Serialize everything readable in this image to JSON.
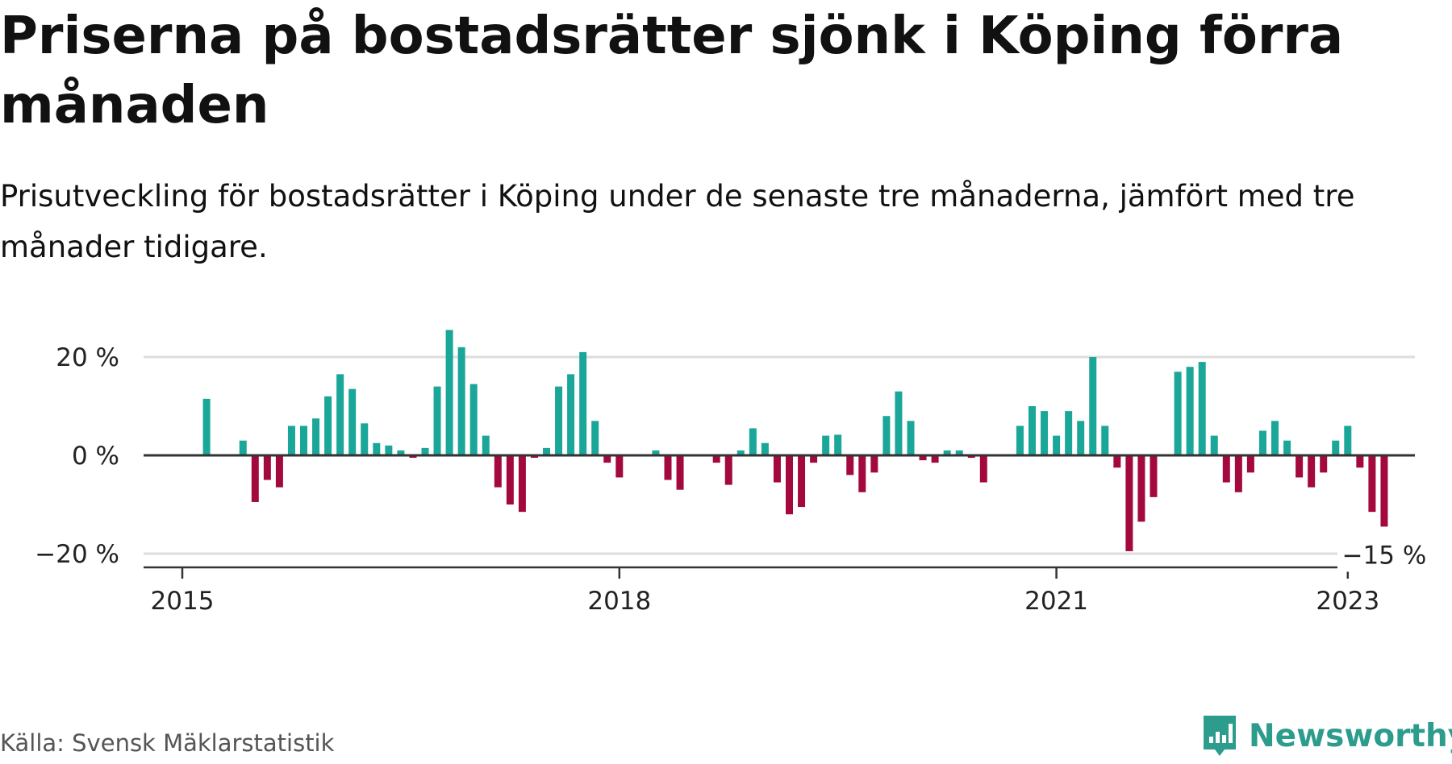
{
  "title": "Priserna på bostadsrätter sjönk i Köping förra månaden",
  "subtitle": "Prisutveckling för bostadsrätter i Köping under de senaste tre månaderna, jämfört med tre månader tidigare.",
  "source": "Källa: Svensk Mäklarstatistik",
  "brand": "Newsworthy",
  "colors": {
    "positive": "#1aa699",
    "negative": "#a3093e",
    "grid": "#dddddd",
    "axis": "#333333",
    "brand": "#2c9c8c"
  },
  "chart_data": {
    "type": "bar",
    "x_start": "2015-01",
    "y_tick_labels": [
      "20 %",
      "0 %",
      "−20 %"
    ],
    "y_ticks": [
      20,
      0,
      -20
    ],
    "ylim": [
      -22,
      27
    ],
    "x_tick_labels": [
      "2015",
      "2018",
      "2021",
      "2023"
    ],
    "x_tick_dates": [
      "2015-01",
      "2018-01",
      "2021-01",
      "2023-01"
    ],
    "last_value_label": "−15 %",
    "grid": true,
    "values": [
      0,
      0,
      11.5,
      0,
      0,
      3,
      -9.5,
      -5,
      -6.5,
      6,
      6,
      7.5,
      12,
      16.5,
      13.5,
      6.5,
      2.5,
      2,
      1,
      -0.5,
      1.5,
      14,
      25.5,
      22,
      14.5,
      4,
      -6.5,
      -10,
      -11.5,
      -0.5,
      1.5,
      14,
      16.5,
      21,
      7,
      -1.5,
      -4.5,
      0,
      0,
      1,
      -5,
      -7,
      0,
      0,
      -1.5,
      -6,
      1,
      5.5,
      2.5,
      -5.5,
      -12,
      -10.5,
      -1.5,
      4,
      4.2,
      -4,
      -7.5,
      -3.5,
      8,
      13,
      7,
      -1,
      -1.5,
      1,
      1,
      -0.5,
      -5.5,
      0,
      0,
      6,
      10,
      9,
      4,
      9,
      7,
      20,
      6,
      -2.5,
      -19.5,
      -13.5,
      -8.5,
      0,
      17,
      18,
      19,
      4,
      -5.5,
      -7.5,
      -3.5,
      5,
      7,
      3,
      -4.5,
      -6.5,
      -3.5,
      3,
      6,
      -2.5,
      -11.5,
      -14.5
    ]
  }
}
